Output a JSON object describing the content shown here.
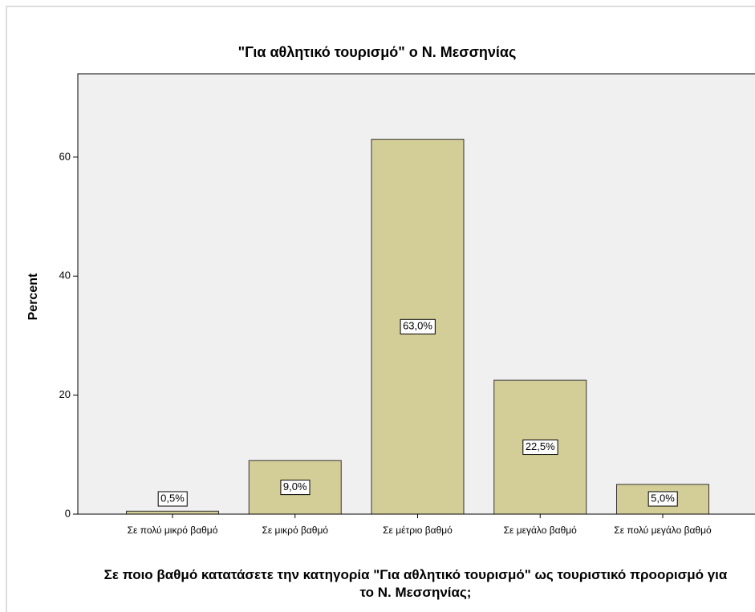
{
  "chart_data": {
    "type": "bar",
    "title": "\"Για αθλητικό τουρισμό\" ο Ν. Μεσσηνίας",
    "x_label": "Σε ποιο βαθμό κατατάσετε την κατηγορία \"Για αθλητικό τουρισμό\" ως τουριστικό προορισμό για το Ν. Μεσσηνίας;",
    "y_label": "Percent",
    "categories": [
      "Σε πολύ μικρό βαθμό",
      "Σε μικρό βαθμό",
      "Σε μέτριο βαθμό",
      "Σε μεγάλο βαθμό",
      "Σε πολύ μεγάλο βαθμό"
    ],
    "values": [
      0.5,
      9.0,
      63.0,
      22.5,
      5.0
    ],
    "value_labels": [
      "0,5%",
      "9,0%",
      "63,0%",
      "22,5%",
      "5,0%"
    ],
    "color": "#d3ce97",
    "ylim": [
      0,
      74
    ],
    "yticks": [
      0,
      20,
      40,
      60
    ],
    "grid": false
  }
}
